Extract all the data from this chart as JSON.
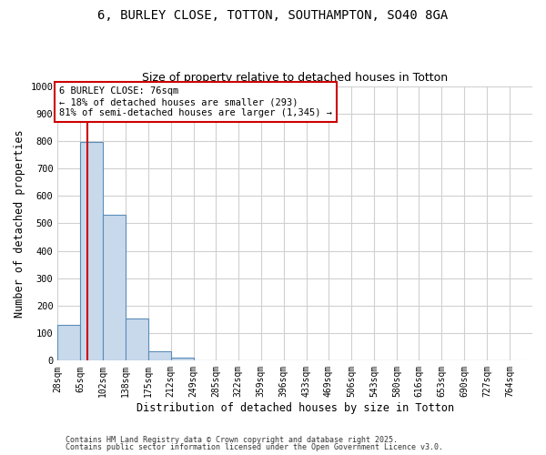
{
  "title": "6, BURLEY CLOSE, TOTTON, SOUTHAMPTON, SO40 8GA",
  "subtitle": "Size of property relative to detached houses in Totton",
  "xlabel": "Distribution of detached houses by size in Totton",
  "ylabel": "Number of detached properties",
  "bin_labels": [
    "28sqm",
    "65sqm",
    "102sqm",
    "138sqm",
    "175sqm",
    "212sqm",
    "249sqm",
    "285sqm",
    "322sqm",
    "359sqm",
    "396sqm",
    "433sqm",
    "469sqm",
    "506sqm",
    "543sqm",
    "580sqm",
    "616sqm",
    "653sqm",
    "690sqm",
    "727sqm",
    "764sqm"
  ],
  "bin_edges": [
    28,
    65,
    102,
    138,
    175,
    212,
    249,
    285,
    322,
    359,
    396,
    433,
    469,
    506,
    543,
    580,
    616,
    653,
    690,
    727,
    764
  ],
  "bar_values": [
    130,
    795,
    530,
    155,
    35,
    10,
    0,
    0,
    0,
    0,
    0,
    0,
    0,
    0,
    0,
    0,
    0,
    0,
    0,
    0
  ],
  "bar_color": "#c9d9ec",
  "bar_edge_color": "#5b8db8",
  "property_line_x": 76,
  "property_line_color": "#cc0000",
  "annotation_text": "6 BURLEY CLOSE: 76sqm\n← 18% of detached houses are smaller (293)\n81% of semi-detached houses are larger (1,345) →",
  "annotation_box_color": "#cc0000",
  "ylim": [
    0,
    1000
  ],
  "yticks": [
    0,
    100,
    200,
    300,
    400,
    500,
    600,
    700,
    800,
    900,
    1000
  ],
  "grid_color": "#d0d0d0",
  "background_color": "#ffffff",
  "footer_line1": "Contains HM Land Registry data © Crown copyright and database right 2025.",
  "footer_line2": "Contains public sector information licensed under the Open Government Licence v3.0.",
  "title_fontsize": 10,
  "subtitle_fontsize": 9,
  "tick_fontsize": 7,
  "ylabel_fontsize": 8.5,
  "xlabel_fontsize": 8.5,
  "annotation_fontsize": 7.5,
  "footer_fontsize": 6
}
